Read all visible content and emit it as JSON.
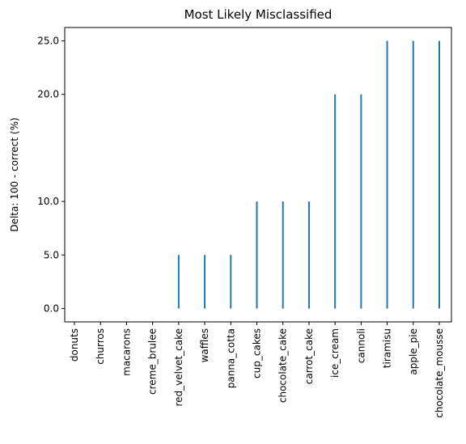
{
  "chart_data": {
    "type": "bar",
    "title": "Most Likely Misclassified",
    "xlabel": "",
    "ylabel": "Delta: 100 - correct (%)",
    "categories": [
      "donuts",
      "churros",
      "macarons",
      "creme_brulee",
      "red_velvet_cake",
      "waffles",
      "panna_cotta",
      "cup_cakes",
      "chocolate_cake",
      "carrot_cake",
      "ice_cream",
      "cannoli",
      "tiramisu",
      "apple_pie",
      "chocolate_mousse"
    ],
    "values": [
      0,
      0,
      0,
      0,
      5,
      5,
      5,
      10,
      10,
      10,
      20,
      20,
      25,
      25,
      25
    ],
    "y_ticks": [
      0.0,
      5.0,
      10.0,
      20.0,
      25.0
    ],
    "y_tick_labels": [
      "0.0",
      "5.0",
      "10.0",
      "20.0",
      "25.0"
    ],
    "ylim": [
      -1.25,
      26.25
    ],
    "grid": false,
    "bar_color": "#1f77b4"
  }
}
